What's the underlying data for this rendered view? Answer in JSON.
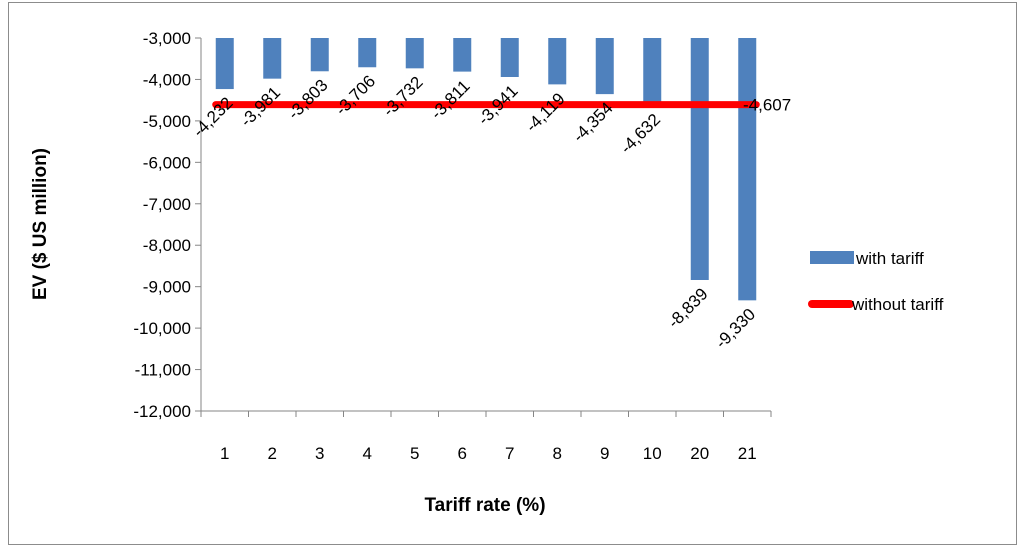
{
  "chart_data": {
    "type": "bar",
    "xlabel": "Tariff rate (%)",
    "ylabel": "EV ($ US million)",
    "categories": [
      "1",
      "2",
      "3",
      "4",
      "5",
      "6",
      "7",
      "8",
      "9",
      "10",
      "20",
      "21"
    ],
    "series": [
      {
        "name": "with tariff",
        "type": "bar",
        "color": "#4f81bd",
        "values": [
          -4232,
          -3981,
          -3803,
          -3706,
          -3732,
          -3811,
          -3941,
          -4119,
          -4354,
          -4632,
          -8839,
          -9330
        ],
        "labels": [
          "-4,232",
          "-3,981",
          "-3,803",
          "-3,706",
          "-3,732",
          "-3,811",
          "-3,941",
          "-4,119",
          "-4,354",
          "-4,632",
          "-8,839",
          "-9,330"
        ]
      },
      {
        "name": "without tariff",
        "type": "line",
        "color": "#ff0000",
        "value": -4607,
        "label": "-4,607"
      }
    ],
    "ylim": [
      -12000,
      -3000
    ],
    "yticks": [
      -3000,
      -4000,
      -5000,
      -6000,
      -7000,
      -8000,
      -9000,
      -10000,
      -11000,
      -12000
    ],
    "ytick_labels": [
      "-3,000",
      "-4,000",
      "-5,000",
      "-6,000",
      "-7,000",
      "-8,000",
      "-9,000",
      "-10,000",
      "-11,000",
      "-12,000"
    ],
    "grid": false,
    "legend_position": "right"
  }
}
